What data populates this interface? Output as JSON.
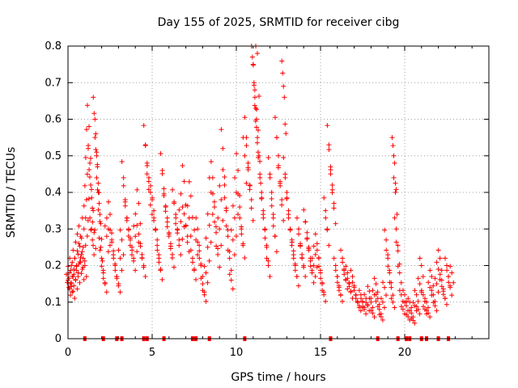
{
  "chart_data": {
    "type": "scatter",
    "title": "Day 155 of 2025, SRMTID for receiver cibg",
    "xlabel": "GPS time / hours",
    "ylabel": "SRMTID / TECUs",
    "xlim": [
      0,
      25
    ],
    "ylim": [
      0,
      0.8
    ],
    "xticks": [
      0,
      5,
      10,
      15,
      20
    ],
    "yticks": [
      0,
      0.1,
      0.2,
      0.3,
      0.4,
      0.5,
      0.6,
      0.7,
      0.8
    ],
    "xtick_labels": [
      "0",
      "5",
      "10",
      "15",
      "20"
    ],
    "ytick_labels": [
      "0",
      "0.1",
      "0.2",
      "0.3",
      "0.4",
      "0.5",
      "0.6",
      "0.7",
      "0.8"
    ],
    "grid": true,
    "marker": "plus",
    "color": "#ff0000",
    "series": [
      {
        "name": "SRMTID",
        "points": [
          [
            0.0,
            0.16
          ],
          [
            0.05,
            0.14
          ],
          [
            0.1,
            0.18
          ],
          [
            0.15,
            0.15
          ],
          [
            0.2,
            0.2
          ],
          [
            0.25,
            0.17
          ],
          [
            0.3,
            0.13
          ],
          [
            0.35,
            0.19
          ],
          [
            0.4,
            0.22
          ],
          [
            0.45,
            0.16
          ],
          [
            0.5,
            0.2
          ],
          [
            0.55,
            0.24
          ],
          [
            0.6,
            0.18
          ],
          [
            0.65,
            0.26
          ],
          [
            0.7,
            0.21
          ],
          [
            0.75,
            0.28
          ],
          [
            0.8,
            0.23
          ],
          [
            0.85,
            0.19
          ],
          [
            0.9,
            0.25
          ],
          [
            0.95,
            0.3
          ],
          [
            1.0,
            0.2
          ],
          [
            1.05,
            0.33
          ],
          [
            1.1,
            0.38
          ],
          [
            1.15,
            0.45
          ],
          [
            1.2,
            0.52
          ],
          [
            1.25,
            0.58
          ],
          [
            1.3,
            0.48
          ],
          [
            1.35,
            0.42
          ],
          [
            1.4,
            0.3
          ],
          [
            1.45,
            0.27
          ],
          [
            1.5,
            0.35
          ],
          [
            1.55,
            0.29
          ],
          [
            1.6,
            0.6
          ],
          [
            1.65,
            0.56
          ],
          [
            1.7,
            0.5
          ],
          [
            1.75,
            0.47
          ],
          [
            1.8,
            0.4
          ],
          [
            1.85,
            0.37
          ],
          [
            1.9,
            0.32
          ],
          [
            1.95,
            0.25
          ],
          [
            2.0,
            0.22
          ],
          [
            2.1,
            0.18
          ],
          [
            2.2,
            0.15
          ],
          [
            2.3,
            0.28
          ],
          [
            2.4,
            0.3
          ],
          [
            2.5,
            0.34
          ],
          [
            2.6,
            0.27
          ],
          [
            2.7,
            0.24
          ],
          [
            2.8,
            0.2
          ],
          [
            2.9,
            0.17
          ],
          [
            3.0,
            0.15
          ],
          [
            3.1,
            0.22
          ],
          [
            3.2,
            0.27
          ],
          [
            3.3,
            0.44
          ],
          [
            3.4,
            0.38
          ],
          [
            3.5,
            0.33
          ],
          [
            3.6,
            0.3
          ],
          [
            3.7,
            0.27
          ],
          [
            3.8,
            0.25
          ],
          [
            3.9,
            0.22
          ],
          [
            4.0,
            0.28
          ],
          [
            4.1,
            0.31
          ],
          [
            4.2,
            0.37
          ],
          [
            4.3,
            0.26
          ],
          [
            4.4,
            0.23
          ],
          [
            4.5,
            0.2
          ],
          [
            4.6,
            0.53
          ],
          [
            4.7,
            0.48
          ],
          [
            4.8,
            0.43
          ],
          [
            4.9,
            0.4
          ],
          [
            5.0,
            0.38
          ],
          [
            5.1,
            0.35
          ],
          [
            5.2,
            0.3
          ],
          [
            5.3,
            0.27
          ],
          [
            5.4,
            0.22
          ],
          [
            5.5,
            0.19
          ],
          [
            5.6,
            0.46
          ],
          [
            5.7,
            0.41
          ],
          [
            5.8,
            0.36
          ],
          [
            5.9,
            0.33
          ],
          [
            6.0,
            0.29
          ],
          [
            6.1,
            0.26
          ],
          [
            6.2,
            0.23
          ],
          [
            6.3,
            0.37
          ],
          [
            6.4,
            0.34
          ],
          [
            6.5,
            0.3
          ],
          [
            6.6,
            0.27
          ],
          [
            6.7,
            0.32
          ],
          [
            6.8,
            0.36
          ],
          [
            6.9,
            0.43
          ],
          [
            7.0,
            0.31
          ],
          [
            7.1,
            0.28
          ],
          [
            7.2,
            0.33
          ],
          [
            7.3,
            0.39
          ],
          [
            7.4,
            0.22
          ],
          [
            7.5,
            0.19
          ],
          [
            7.6,
            0.27
          ],
          [
            7.7,
            0.3
          ],
          [
            7.8,
            0.24
          ],
          [
            7.9,
            0.2
          ],
          [
            8.0,
            0.15
          ],
          [
            8.1,
            0.12
          ],
          [
            8.2,
            0.18
          ],
          [
            8.3,
            0.25
          ],
          [
            8.4,
            0.31
          ],
          [
            8.5,
            0.4
          ],
          [
            8.6,
            0.44
          ],
          [
            8.7,
            0.36
          ],
          [
            8.8,
            0.29
          ],
          [
            8.9,
            0.23
          ],
          [
            9.0,
            0.3
          ],
          [
            9.1,
            0.38
          ],
          [
            9.2,
            0.52
          ],
          [
            9.3,
            0.42
          ],
          [
            9.4,
            0.35
          ],
          [
            9.5,
            0.28
          ],
          [
            9.6,
            0.22
          ],
          [
            9.7,
            0.16
          ],
          [
            9.8,
            0.27
          ],
          [
            9.9,
            0.33
          ],
          [
            10.0,
            0.4
          ],
          [
            10.1,
            0.46
          ],
          [
            10.2,
            0.36
          ],
          [
            10.3,
            0.3
          ],
          [
            10.4,
            0.26
          ],
          [
            10.5,
            0.5
          ],
          [
            10.6,
            0.55
          ],
          [
            10.7,
            0.48
          ],
          [
            10.8,
            0.42
          ],
          [
            10.9,
            0.38
          ],
          [
            11.0,
            0.75
          ],
          [
            11.05,
            0.7
          ],
          [
            11.1,
            0.68
          ],
          [
            11.15,
            0.63
          ],
          [
            11.2,
            0.6
          ],
          [
            11.25,
            0.78
          ],
          [
            11.3,
            0.57
          ],
          [
            11.35,
            0.5
          ],
          [
            11.4,
            0.45
          ],
          [
            11.5,
            0.4
          ],
          [
            11.6,
            0.35
          ],
          [
            11.7,
            0.3
          ],
          [
            11.8,
            0.25
          ],
          [
            11.9,
            0.2
          ],
          [
            12.0,
            0.45
          ],
          [
            12.1,
            0.4
          ],
          [
            12.2,
            0.33
          ],
          [
            12.3,
            0.28
          ],
          [
            12.4,
            0.55
          ],
          [
            12.5,
            0.5
          ],
          [
            12.6,
            0.43
          ],
          [
            12.7,
            0.38
          ],
          [
            12.8,
            0.69
          ],
          [
            12.85,
            0.66
          ],
          [
            12.9,
            0.45
          ],
          [
            13.0,
            0.4
          ],
          [
            13.1,
            0.35
          ],
          [
            13.2,
            0.3
          ],
          [
            13.3,
            0.27
          ],
          [
            13.4,
            0.24
          ],
          [
            13.5,
            0.2
          ],
          [
            13.6,
            0.17
          ],
          [
            13.7,
            0.3
          ],
          [
            13.8,
            0.26
          ],
          [
            13.9,
            0.23
          ],
          [
            14.0,
            0.2
          ],
          [
            14.1,
            0.32
          ],
          [
            14.2,
            0.29
          ],
          [
            14.3,
            0.25
          ],
          [
            14.4,
            0.22
          ],
          [
            14.5,
            0.18
          ],
          [
            14.6,
            0.2
          ],
          [
            14.7,
            0.23
          ],
          [
            14.8,
            0.26
          ],
          [
            14.9,
            0.22
          ],
          [
            15.0,
            0.18
          ],
          [
            15.1,
            0.15
          ],
          [
            15.2,
            0.12
          ],
          [
            15.3,
            0.35
          ],
          [
            15.4,
            0.3
          ],
          [
            15.5,
            0.53
          ],
          [
            15.6,
            0.47
          ],
          [
            15.7,
            0.42
          ],
          [
            15.8,
            0.37
          ],
          [
            15.9,
            0.2
          ],
          [
            16.0,
            0.17
          ],
          [
            16.1,
            0.14
          ],
          [
            16.2,
            0.12
          ],
          [
            16.3,
            0.22
          ],
          [
            16.4,
            0.19
          ],
          [
            16.5,
            0.16
          ],
          [
            16.6,
            0.18
          ],
          [
            16.7,
            0.15
          ],
          [
            16.8,
            0.13
          ],
          [
            16.9,
            0.17
          ],
          [
            17.0,
            0.14
          ],
          [
            17.1,
            0.12
          ],
          [
            17.2,
            0.1
          ],
          [
            17.3,
            0.09
          ],
          [
            17.4,
            0.12
          ],
          [
            17.5,
            0.1
          ],
          [
            17.6,
            0.08
          ],
          [
            17.7,
            0.11
          ],
          [
            17.8,
            0.09
          ],
          [
            17.9,
            0.13
          ],
          [
            18.0,
            0.1
          ],
          [
            18.1,
            0.07
          ],
          [
            18.2,
            0.12
          ],
          [
            18.3,
            0.15
          ],
          [
            18.4,
            0.11
          ],
          [
            18.5,
            0.08
          ],
          [
            18.6,
            0.06
          ],
          [
            18.7,
            0.1
          ],
          [
            18.8,
            0.14
          ],
          [
            18.9,
            0.27
          ],
          [
            19.0,
            0.22
          ],
          [
            19.1,
            0.18
          ],
          [
            19.2,
            0.14
          ],
          [
            19.3,
            0.1
          ],
          [
            19.35,
            0.5
          ],
          [
            19.4,
            0.48
          ],
          [
            19.45,
            0.4
          ],
          [
            19.5,
            0.3
          ],
          [
            19.6,
            0.24
          ],
          [
            19.7,
            0.18
          ],
          [
            19.8,
            0.12
          ],
          [
            19.9,
            0.08
          ],
          [
            20.0,
            0.12
          ],
          [
            20.1,
            0.09
          ],
          [
            20.2,
            0.06
          ],
          [
            20.3,
            0.1
          ],
          [
            20.4,
            0.07
          ],
          [
            20.5,
            0.05
          ],
          [
            20.6,
            0.09
          ],
          [
            20.7,
            0.12
          ],
          [
            20.8,
            0.08
          ],
          [
            20.9,
            0.15
          ],
          [
            21.0,
            0.2
          ],
          [
            21.1,
            0.12
          ],
          [
            21.2,
            0.08
          ],
          [
            21.3,
            0.1
          ],
          [
            21.4,
            0.07
          ],
          [
            21.5,
            0.14
          ],
          [
            21.6,
            0.17
          ],
          [
            21.7,
            0.12
          ],
          [
            21.8,
            0.09
          ],
          [
            21.9,
            0.15
          ],
          [
            22.0,
            0.19
          ],
          [
            22.1,
            0.22
          ],
          [
            22.2,
            0.16
          ],
          [
            22.3,
            0.13
          ],
          [
            22.4,
            0.11
          ],
          [
            22.5,
            0.2
          ],
          [
            22.6,
            0.17
          ],
          [
            22.7,
            0.14
          ],
          [
            22.8,
            0.18
          ]
        ]
      }
    ],
    "zero_markers_x": [
      1.0,
      2.1,
      2.9,
      3.2,
      4.5,
      4.7,
      5.7,
      7.4,
      7.6,
      8.4,
      10.5,
      15.6,
      18.4,
      19.6,
      20.1,
      20.3,
      21.0,
      21.3,
      22.0,
      22.6
    ]
  }
}
